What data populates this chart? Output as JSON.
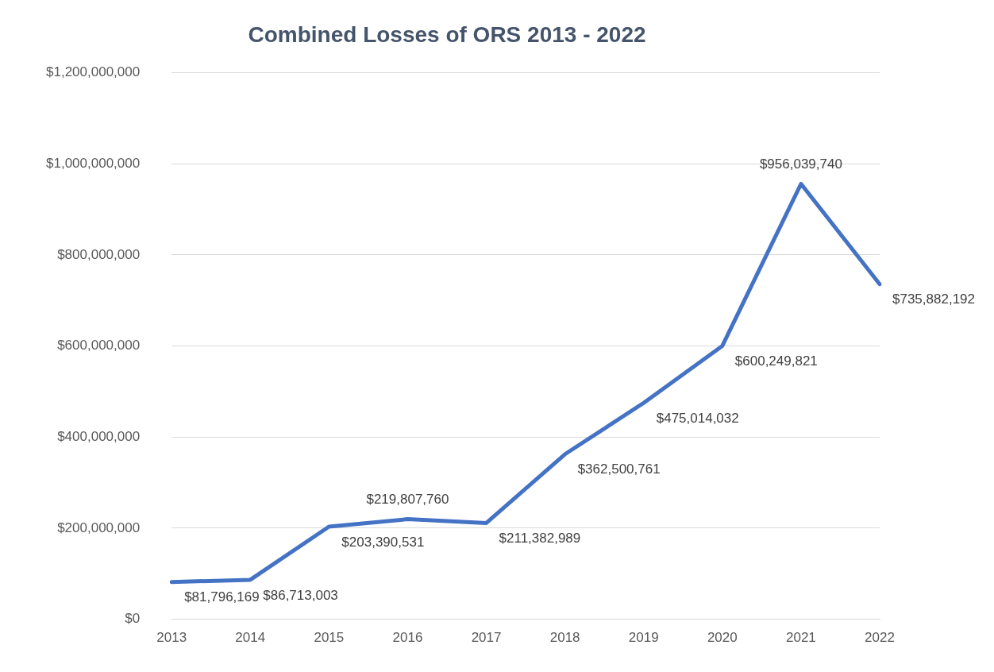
{
  "chart_data": {
    "type": "line",
    "title": "Combined Losses of ORS 2013 - 2022",
    "categories": [
      "2013",
      "2014",
      "2015",
      "2016",
      "2017",
      "2018",
      "2019",
      "2020",
      "2021",
      "2022"
    ],
    "series": [
      {
        "color": "#4472c4",
        "values": [
          81796169,
          86713003,
          203390531,
          219807760,
          211382989,
          362500761,
          475014032,
          600249821,
          956039740,
          735882192
        ],
        "value_labels": [
          "$81,796,169",
          "$86,713,003",
          "$203,390,531",
          "$219,807,760",
          "$211,382,989",
          "$362,500,761",
          "$475,014,032",
          "$600,249,821",
          "$956,039,740",
          "$735,882,192"
        ]
      }
    ],
    "ylim": [
      0,
      1200000000
    ],
    "yticks": [
      {
        "value": 0,
        "label": "$0"
      },
      {
        "value": 200000000,
        "label": "$200,000,000"
      },
      {
        "value": 400000000,
        "label": "$400,000,000"
      },
      {
        "value": 600000000,
        "label": "$600,000,000"
      },
      {
        "value": 800000000,
        "label": "$800,000,000"
      },
      {
        "value": 1000000000,
        "label": "$1,000,000,000"
      },
      {
        "value": 1200000000,
        "label": "$1,200,000,000"
      }
    ],
    "grid": "y",
    "legend": false,
    "marker": "none",
    "line_style": "solid"
  }
}
